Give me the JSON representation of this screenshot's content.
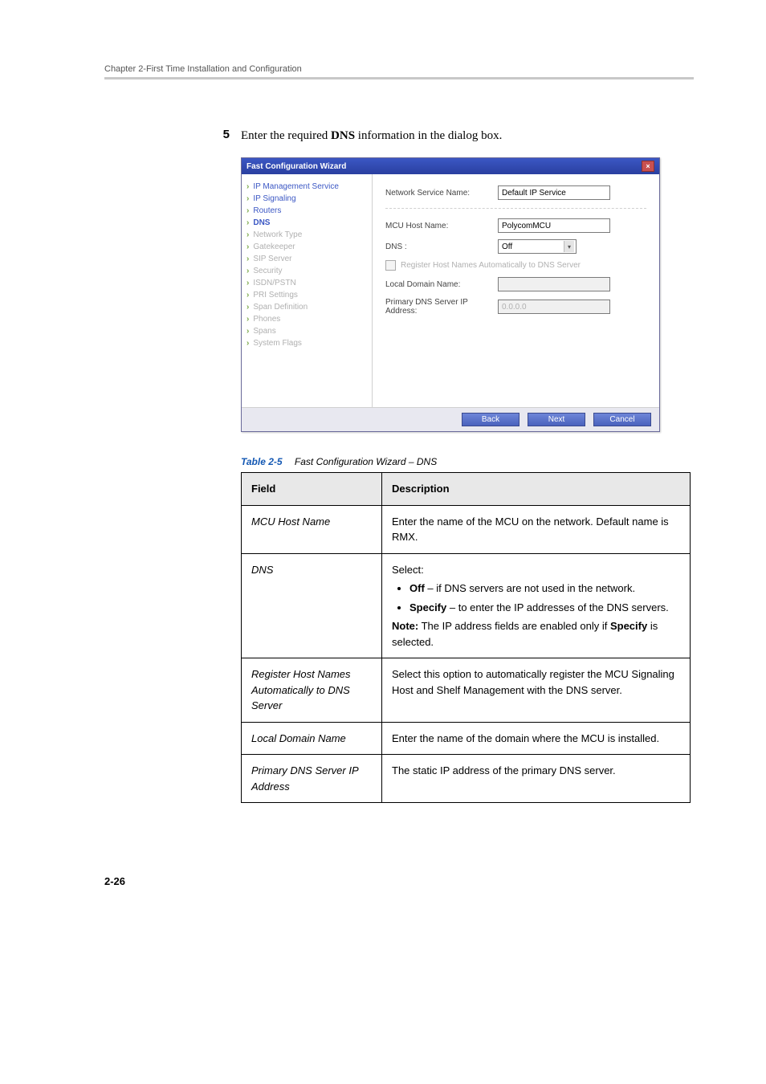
{
  "header": {
    "chapter": "Chapter 2-First Time Installation and Configuration"
  },
  "step": {
    "number": "5",
    "pre": "Enter the required ",
    "bold": "DNS",
    "post": " information in the dialog box."
  },
  "dialog": {
    "title": "Fast Configuration Wizard",
    "close": "×",
    "nav": [
      {
        "label": "IP Management Service",
        "cls": "done"
      },
      {
        "label": "IP Signaling",
        "cls": "done"
      },
      {
        "label": "Routers",
        "cls": "done"
      },
      {
        "label": "DNS",
        "cls": "current"
      },
      {
        "label": "Network Type",
        "cls": "greyed"
      },
      {
        "label": "Gatekeeper",
        "cls": "greyed"
      },
      {
        "label": "SIP Server",
        "cls": "greyed"
      },
      {
        "label": "Security",
        "cls": "greyed"
      },
      {
        "label": "ISDN/PSTN",
        "cls": "greyed"
      },
      {
        "label": "PRI Settings",
        "cls": "greyed"
      },
      {
        "label": "Span Definition",
        "cls": "greyed"
      },
      {
        "label": "Phones",
        "cls": "greyed"
      },
      {
        "label": "Spans",
        "cls": "greyed"
      },
      {
        "label": "System Flags",
        "cls": "greyed"
      }
    ],
    "fields": {
      "network_service_label": "Network Service Name:",
      "network_service_value": "Default IP Service",
      "mcu_host_label": "MCU Host Name:",
      "mcu_host_value": "PolycomMCU",
      "dns_label": "DNS :",
      "dns_value": "Off",
      "register_label": "Register Host Names Automatically to DNS Server",
      "local_domain_label": "Local Domain Name:",
      "local_domain_value": "",
      "primary_dns_label": "Primary DNS Server IP Address:",
      "primary_dns_value": "0.0.0.0"
    },
    "buttons": {
      "back": "Back",
      "next": "Next",
      "cancel": "Cancel"
    }
  },
  "caption": {
    "num": "Table 2-5",
    "title": "Fast Configuration Wizard – DNS"
  },
  "table": {
    "headers": {
      "field": "Field",
      "desc": "Description"
    },
    "rows": {
      "r1": {
        "field": "MCU Host Name",
        "desc": "Enter the name of the MCU on the network. Default name is RMX."
      },
      "r2": {
        "field": "DNS",
        "pre": "Select:",
        "b1_bold": "Off",
        "b1_rest": " – if DNS servers are not used in the network.",
        "b2_bold": "Specify",
        "b2_rest": " – to enter the IP addresses of the DNS servers.",
        "note_bold": "Note:",
        "note_rest": " The IP address fields are enabled only if ",
        "note_bold2": "Specify",
        "note_rest2": " is selected."
      },
      "r3": {
        "field": "Register Host Names Automatically to DNS Server",
        "desc": "Select this option to automatically register the MCU Signaling Host and Shelf Management with the DNS server."
      },
      "r4": {
        "field": "Local Domain Name",
        "desc": "Enter the name of the domain where the MCU is installed."
      },
      "r5": {
        "field": "Primary DNS Server IP Address",
        "desc": "The static IP address of the primary DNS server."
      }
    }
  },
  "page_num": "2-26"
}
